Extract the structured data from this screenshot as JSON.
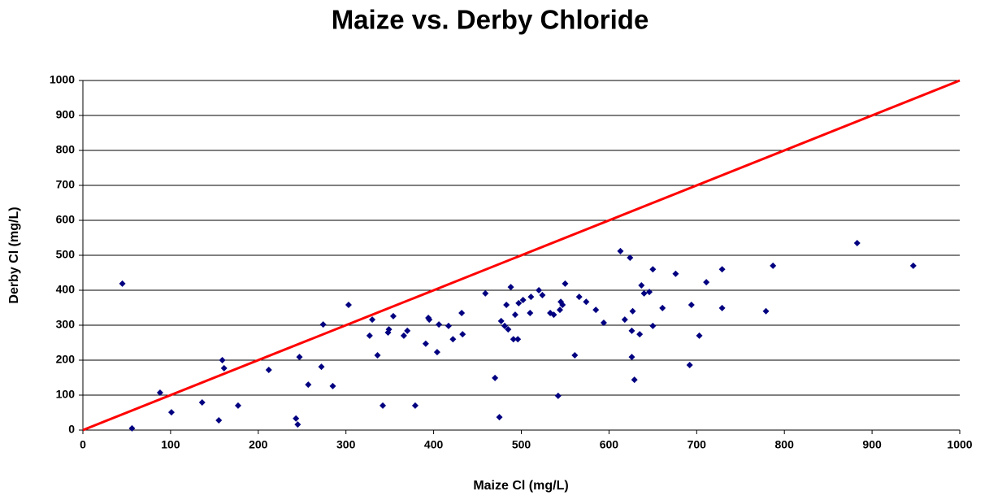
{
  "chart_data": {
    "type": "scatter",
    "title": "Maize vs. Derby Chloride",
    "xlabel": "Maize Cl (mg/L)",
    "ylabel": "Derby Cl (mg/L)",
    "xlim": [
      0,
      1000
    ],
    "ylim": [
      0,
      1000
    ],
    "xticks": [
      0,
      100,
      200,
      300,
      400,
      500,
      600,
      700,
      800,
      900,
      1000
    ],
    "yticks": [
      0,
      100,
      200,
      300,
      400,
      500,
      600,
      700,
      800,
      900,
      1000
    ],
    "grid": true,
    "series": [
      {
        "type": "scatter",
        "color": "#000080",
        "x": [
          45,
          56,
          88,
          101,
          136,
          155,
          159,
          161,
          177,
          212,
          243,
          245,
          247,
          257,
          272,
          274,
          285,
          303,
          327,
          330,
          336,
          342,
          348,
          349,
          354,
          366,
          370,
          379,
          391,
          394,
          395,
          404,
          406,
          417,
          422,
          432,
          433,
          459,
          470,
          475,
          477,
          481,
          483,
          485,
          488,
          491,
          493,
          496,
          497,
          502,
          510,
          511,
          520,
          524,
          533,
          537,
          542,
          544,
          545,
          547,
          550,
          561,
          566,
          574,
          585,
          594,
          613,
          618,
          624,
          626,
          626,
          627,
          629,
          635,
          637,
          640,
          646,
          650,
          650,
          661,
          676,
          692,
          694,
          703,
          711,
          729,
          729,
          787,
          779,
          883,
          947
        ],
        "values": [
          419,
          5,
          107,
          51,
          79,
          28,
          200,
          177,
          70,
          172,
          33,
          16,
          209,
          130,
          181,
          302,
          126,
          358,
          270,
          316,
          214,
          70,
          279,
          288,
          326,
          270,
          284,
          70,
          247,
          321,
          316,
          223,
          302,
          298,
          260,
          335,
          274,
          391,
          149,
          37,
          312,
          298,
          358,
          288,
          409,
          260,
          330,
          260,
          363,
          372,
          335,
          381,
          400,
          386,
          335,
          330,
          98,
          344,
          367,
          358,
          419,
          214,
          381,
          367,
          344,
          307,
          512,
          316,
          493,
          284,
          209,
          340,
          144,
          274,
          414,
          391,
          395,
          298,
          460,
          349,
          447,
          186,
          358,
          270,
          423,
          349,
          460,
          470,
          340,
          535,
          470
        ]
      },
      {
        "type": "line",
        "color": "#ff0000",
        "x": [
          0,
          1000
        ],
        "values": [
          0,
          1000
        ]
      }
    ]
  }
}
